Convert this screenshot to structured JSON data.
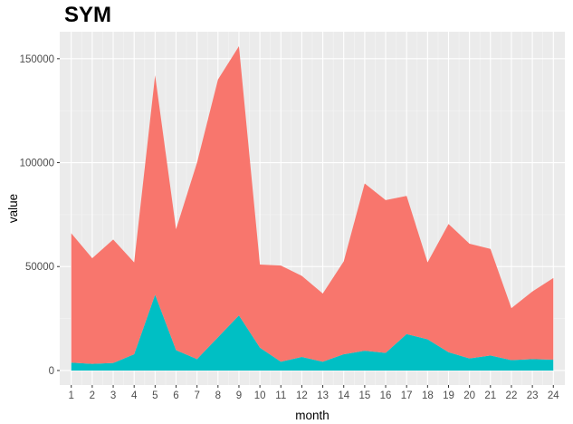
{
  "chart_data": {
    "type": "area",
    "title": "SYM",
    "xlabel": "month",
    "ylabel": "value",
    "x": [
      1,
      2,
      3,
      4,
      5,
      6,
      7,
      8,
      9,
      10,
      11,
      12,
      13,
      14,
      15,
      16,
      17,
      18,
      19,
      20,
      21,
      22,
      23,
      24
    ],
    "xlim": [
      0.45,
      24.55
    ],
    "ylim": [
      -7000,
      163000
    ],
    "yticks": [
      0,
      50000,
      100000,
      150000
    ],
    "ytick_labels": [
      "0",
      "50000",
      "100000",
      "150000"
    ],
    "stacked": true,
    "grid": true,
    "legend": "none",
    "series": [
      {
        "color": "#00BFC4",
        "values": [
          3800,
          3200,
          3600,
          7800,
          36500,
          9800,
          5500,
          16000,
          26500,
          11000,
          4200,
          6500,
          4200,
          7800,
          9500,
          8500,
          17500,
          15000,
          8800,
          5800,
          7200,
          5000,
          5500,
          5200
        ]
      },
      {
        "color": "#F8766D",
        "values": [
          62200,
          50800,
          59400,
          44200,
          105500,
          58200,
          94500,
          124000,
          129500,
          40000,
          46300,
          39000,
          32800,
          44700,
          80500,
          73500,
          66500,
          37000,
          61700,
          55200,
          51300,
          25000,
          32500,
          39300
        ]
      }
    ]
  }
}
